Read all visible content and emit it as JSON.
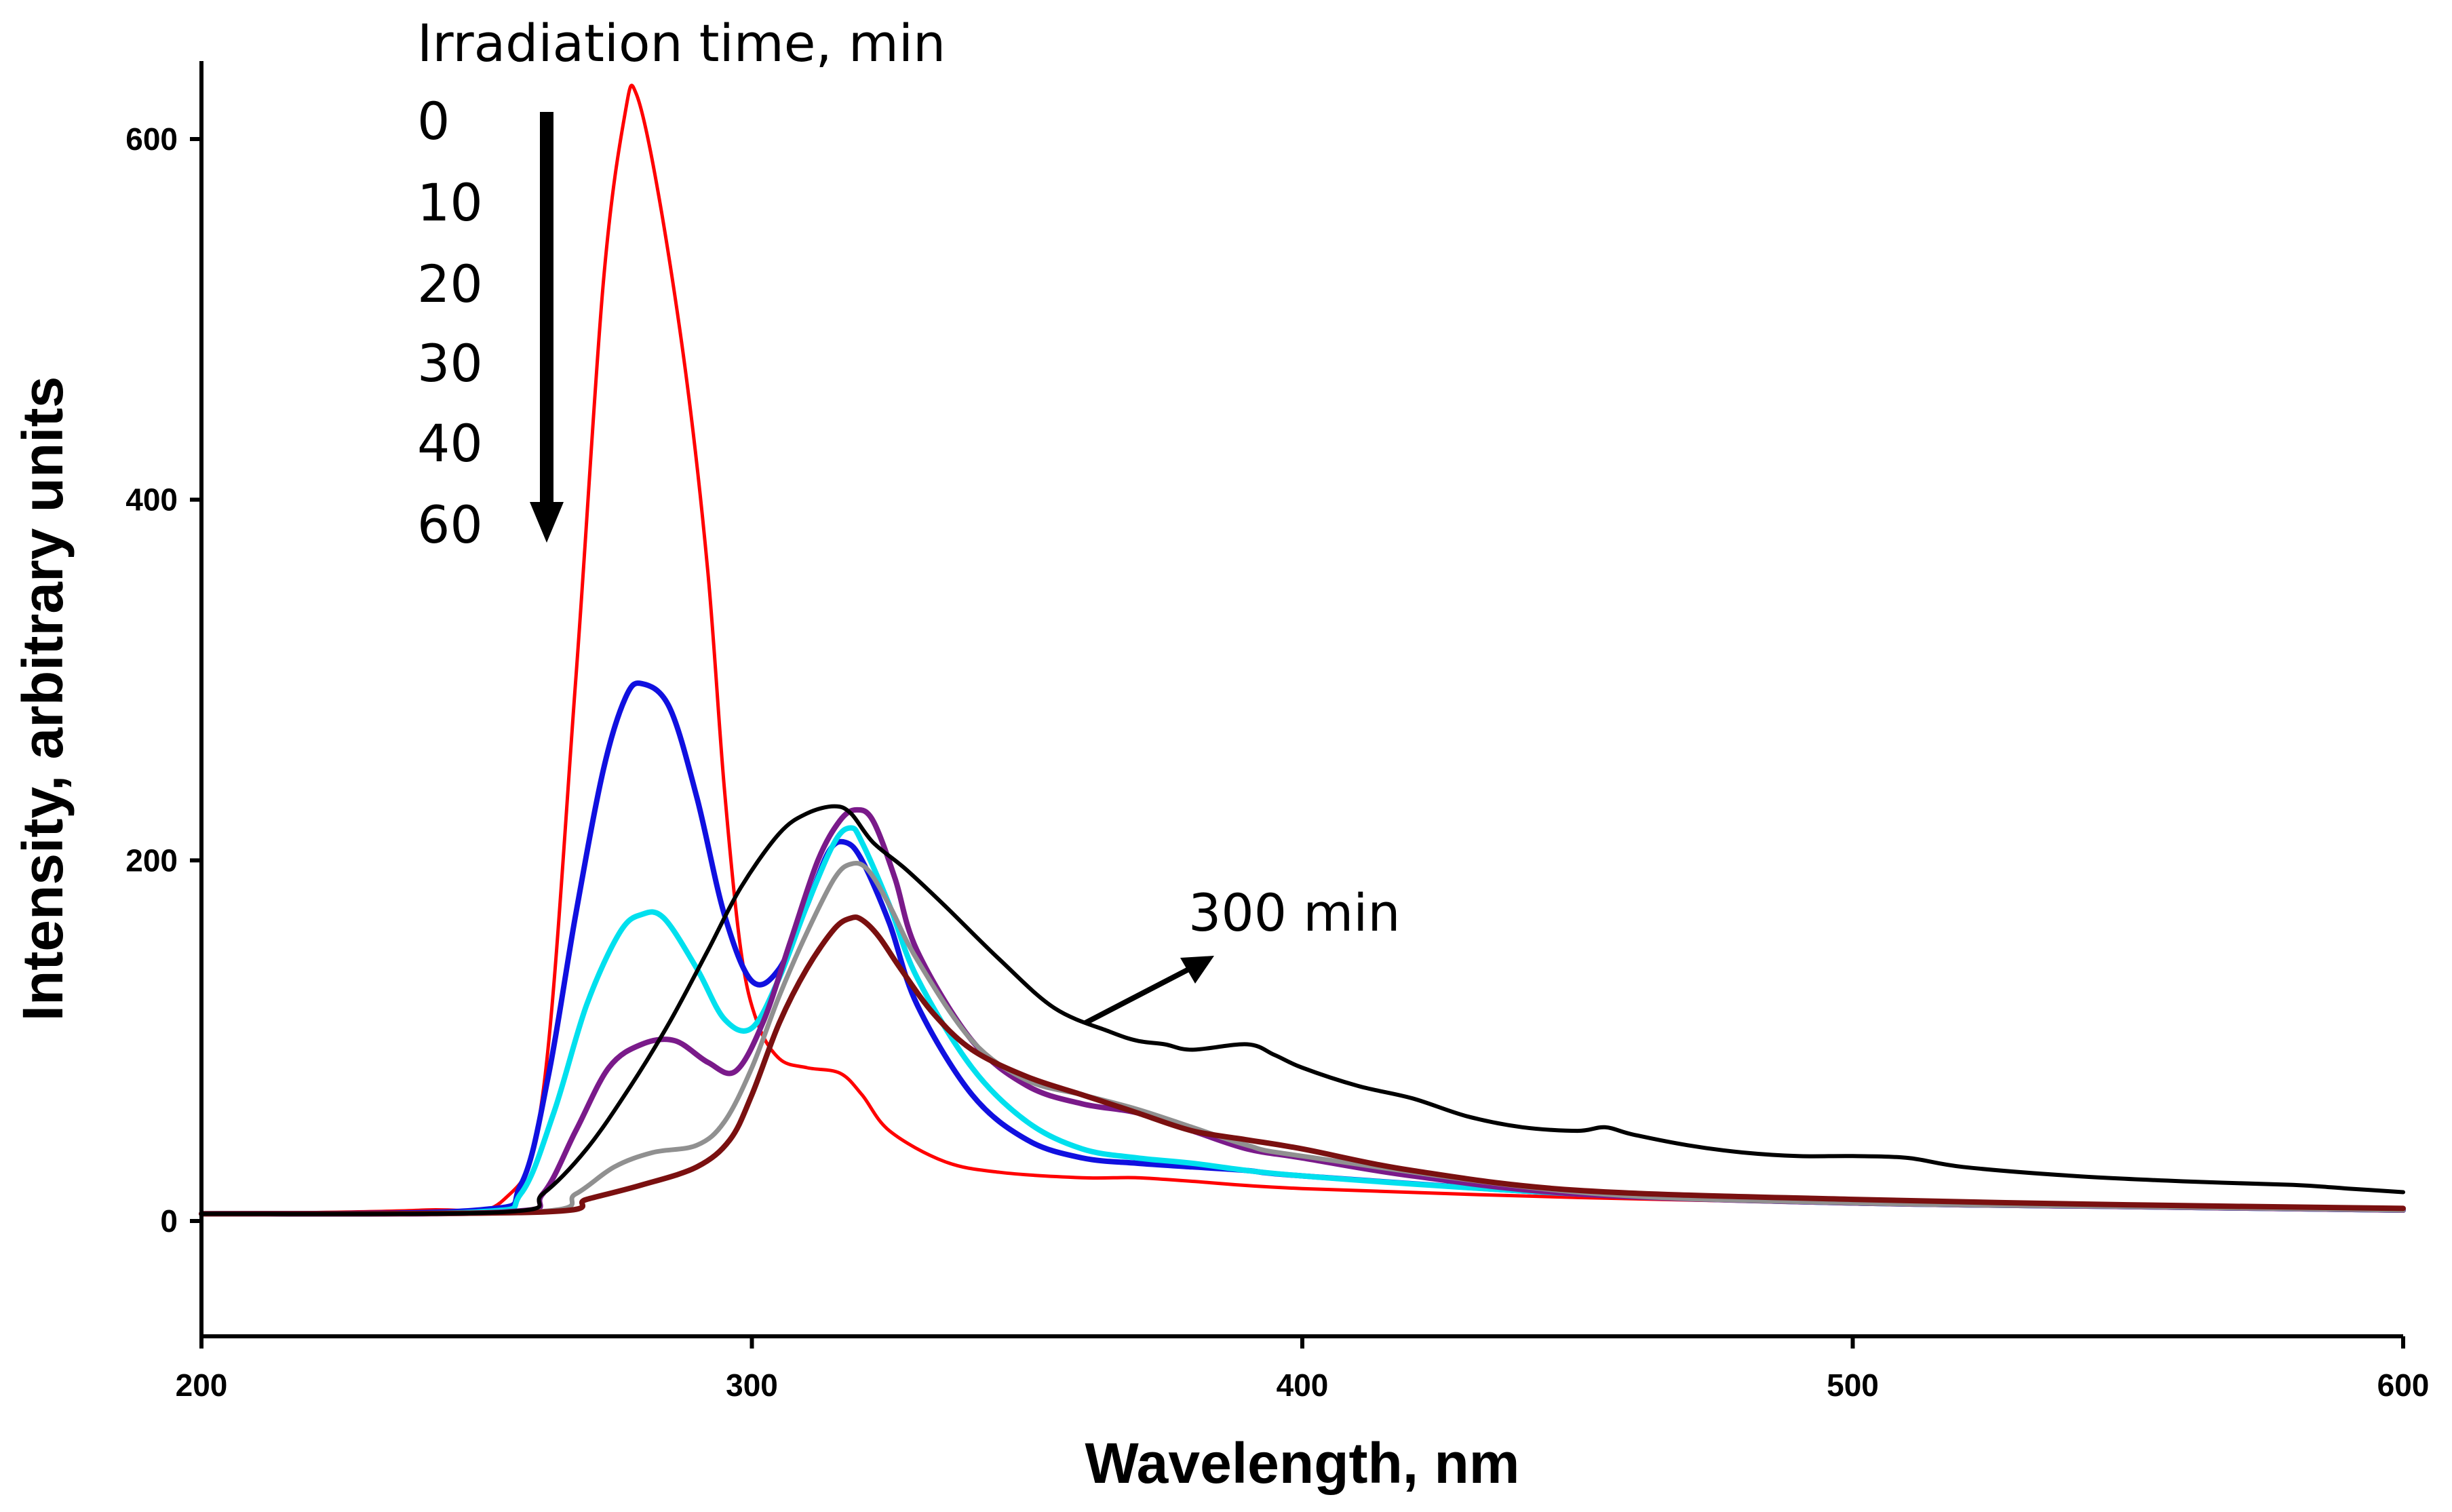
{
  "chart_data": {
    "type": "line",
    "title": "",
    "xlabel": "Wavelength, nm",
    "ylabel": "Intensity, arbitrary units",
    "xlim": [
      200,
      600
    ],
    "ylim": [
      -60,
      640
    ],
    "xticks": [
      200,
      300,
      400,
      500,
      600
    ],
    "yticks": [
      0,
      200,
      400,
      600
    ],
    "grid": false,
    "legend": {
      "title": "Irradiation time, min",
      "entries": [
        "0",
        "10",
        "20",
        "30",
        "40",
        "60"
      ],
      "arrow_direction": "down"
    },
    "annotations": [
      {
        "text": "300 min",
        "points_to_series": "300 min"
      }
    ],
    "series": [
      {
        "name": "0",
        "color": "#ff0000",
        "x": [
          200,
          240,
          255,
          262,
          268,
          273,
          277,
          279,
          283,
          288,
          292,
          295,
          298,
          301,
          305,
          310,
          316,
          320,
          325,
          335,
          345,
          360,
          370,
          380,
          400,
          450,
          500,
          550,
          600
        ],
        "y": [
          4,
          6,
          12,
          70,
          300,
          520,
          615,
          625,
          570,
          470,
          360,
          240,
          150,
          110,
          90,
          85,
          82,
          70,
          50,
          33,
          27,
          24,
          24,
          22,
          18,
          13,
          10,
          8,
          6
        ]
      },
      {
        "name": "10",
        "color": "#1010e0",
        "x": [
          200,
          250,
          258,
          263,
          268,
          273,
          277,
          280,
          285,
          290,
          295,
          300,
          305,
          310,
          314,
          317,
          320,
          325,
          330,
          340,
          350,
          360,
          370,
          380,
          390,
          400,
          450,
          500,
          550,
          600
        ],
        "y": [
          4,
          6,
          20,
          80,
          170,
          250,
          290,
          298,
          285,
          235,
          170,
          133,
          140,
          175,
          205,
          210,
          200,
          165,
          120,
          70,
          45,
          35,
          32,
          30,
          28,
          25,
          15,
          10,
          8,
          6
        ]
      },
      {
        "name": "20",
        "color": "#00e0ee",
        "x": [
          200,
          250,
          258,
          264,
          270,
          276,
          280,
          284,
          290,
          295,
          300,
          305,
          310,
          315,
          318,
          320,
          325,
          330,
          340,
          350,
          360,
          370,
          380,
          400,
          450,
          500,
          550,
          600
        ],
        "y": [
          4,
          5,
          15,
          60,
          120,
          160,
          170,
          168,
          140,
          112,
          107,
          135,
          175,
          210,
          218,
          210,
          175,
          135,
          85,
          55,
          40,
          35,
          32,
          25,
          15,
          10,
          8,
          6
        ]
      },
      {
        "name": "30",
        "color": "#7a1a8a",
        "x": [
          200,
          255,
          262,
          268,
          274,
          280,
          286,
          292,
          297,
          302,
          307,
          312,
          316,
          319,
          322,
          326,
          330,
          340,
          350,
          360,
          370,
          380,
          390,
          400,
          420,
          450,
          500,
          550,
          600
        ],
        "y": [
          4,
          5,
          15,
          50,
          85,
          98,
          100,
          88,
          83,
          110,
          155,
          200,
          222,
          228,
          222,
          190,
          150,
          100,
          75,
          65,
          60,
          50,
          40,
          35,
          25,
          15,
          10,
          8,
          6
        ]
      },
      {
        "name": "40",
        "color": "#909090",
        "x": [
          200,
          260,
          268,
          275,
          282,
          290,
          295,
          300,
          305,
          310,
          315,
          318,
          321,
          325,
          330,
          340,
          350,
          360,
          370,
          380,
          390,
          400,
          450,
          500,
          550,
          600
        ],
        "y": [
          4,
          5,
          15,
          30,
          38,
          42,
          55,
          85,
          125,
          160,
          190,
          198,
          195,
          175,
          145,
          100,
          78,
          70,
          62,
          52,
          42,
          36,
          16,
          10,
          8,
          6
        ]
      },
      {
        "name": "60",
        "color": "#7a1010",
        "x": [
          200,
          262,
          270,
          280,
          290,
          296,
          300,
          305,
          310,
          315,
          318,
          320,
          323,
          327,
          333,
          340,
          350,
          360,
          370,
          380,
          390,
          400,
          420,
          450,
          500,
          550,
          600
        ],
        "y": [
          4,
          5,
          12,
          20,
          30,
          45,
          70,
          110,
          140,
          162,
          168,
          167,
          158,
          140,
          115,
          95,
          80,
          70,
          60,
          50,
          45,
          40,
          28,
          17,
          12,
          9,
          7
        ]
      },
      {
        "name": "300 min",
        "color": "#000000",
        "x": [
          200,
          255,
          262,
          270,
          278,
          285,
          292,
          298,
          305,
          310,
          315,
          318,
          322,
          328,
          335,
          345,
          355,
          365,
          370,
          375,
          380,
          390,
          395,
          400,
          410,
          420,
          430,
          440,
          450,
          455,
          460,
          470,
          480,
          490,
          500,
          510,
          520,
          540,
          560,
          580,
          590,
          600
        ],
        "y": [
          4,
          5,
          15,
          40,
          75,
          110,
          150,
          185,
          215,
          226,
          230,
          226,
          210,
          195,
          175,
          145,
          118,
          105,
          100,
          98,
          95,
          98,
          92,
          85,
          75,
          68,
          58,
          52,
          50,
          52,
          48,
          42,
          38,
          36,
          36,
          35,
          30,
          25,
          22,
          20,
          18,
          16
        ]
      }
    ]
  }
}
